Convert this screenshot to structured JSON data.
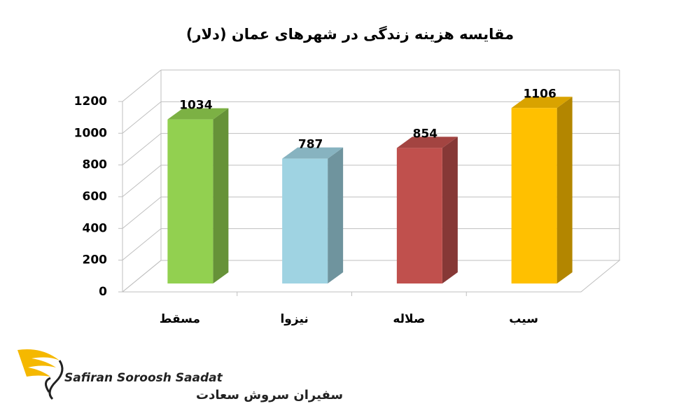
{
  "chart_data": {
    "type": "bar3d",
    "title": "مقایسه هزینه زندگی در شهرهای عمان (دلار)",
    "categories": [
      "مسقط",
      "نیزوا",
      "صلاله",
      "سیب"
    ],
    "values": [
      1034,
      787,
      854,
      1106
    ],
    "colors": [
      "#92d050",
      "#9fd3e2",
      "#c0504d",
      "#ffc000"
    ],
    "ylim": [
      0,
      1200
    ],
    "yticks": [
      0,
      200,
      400,
      600,
      800,
      1000,
      1200
    ],
    "grid": true
  },
  "logo": {
    "name": "Safiran Soroosh Saadat",
    "name_fa": "سفیران سروش سعادت"
  }
}
